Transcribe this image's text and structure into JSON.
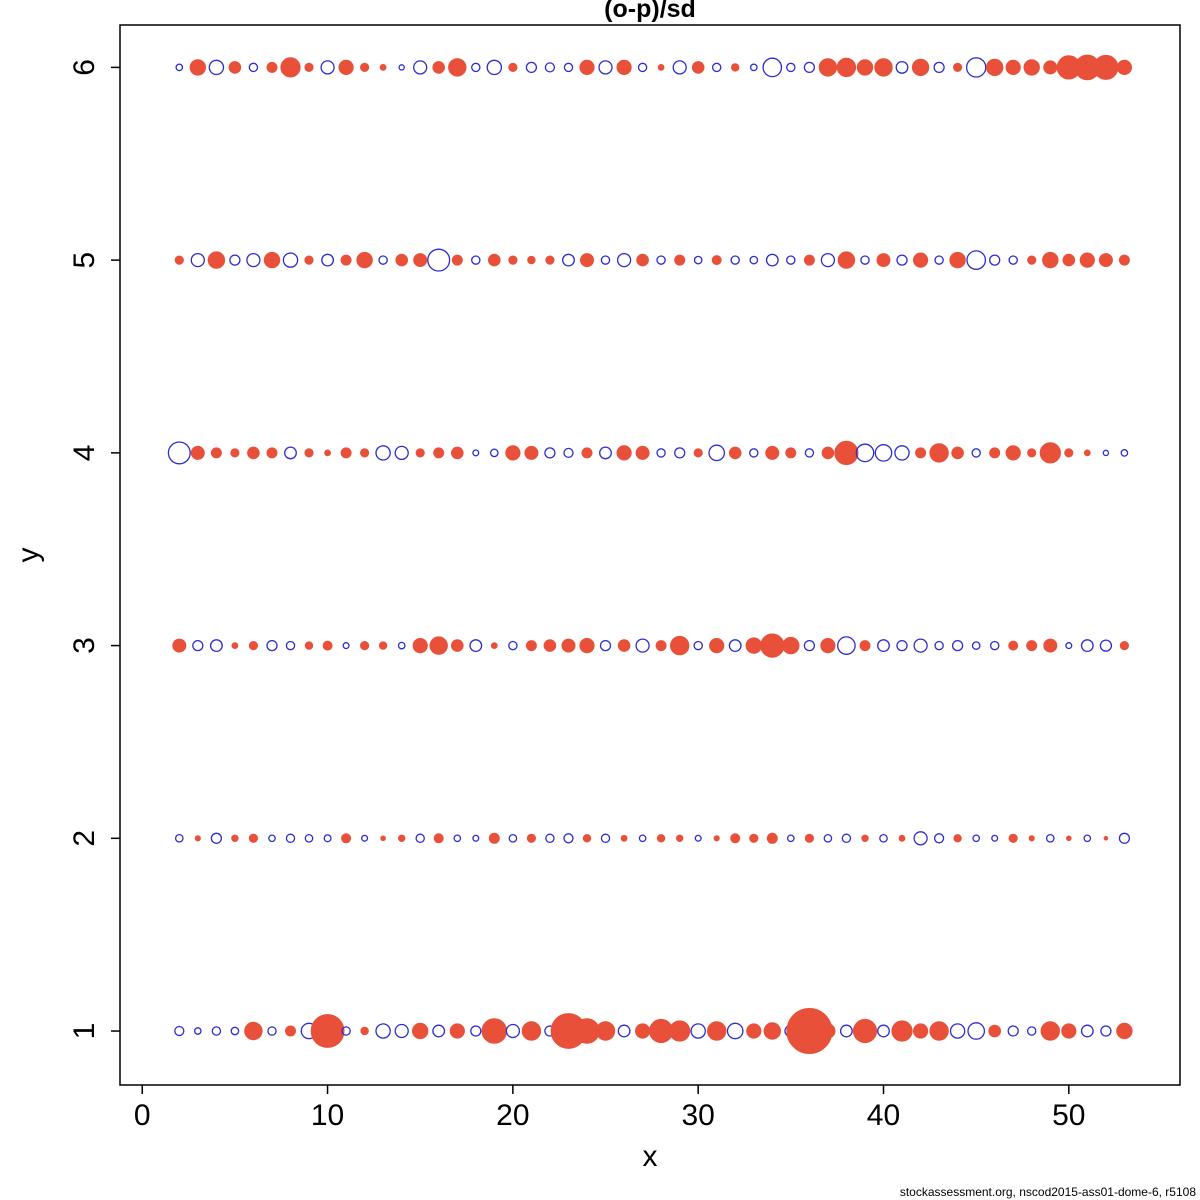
{
  "title": "(o-p)/sd",
  "footer": "stockassessment.org, nscod2015-ass01-dome-6, r5108",
  "chart_data": {
    "type": "scatter",
    "subtype": "bubble-residual-plot",
    "title": "(o-p)/sd",
    "xlabel": "x",
    "ylabel": "y",
    "xlim": [
      -1.2,
      56
    ],
    "ylim": [
      0.72,
      6.22
    ],
    "xticks": [
      0,
      10,
      20,
      30,
      40,
      50
    ],
    "yticks": [
      1,
      2,
      3,
      4,
      5,
      6
    ],
    "grid": false,
    "legend_position": "none",
    "positive_color": "#2d2dd0",
    "negative_color": "#e8503a",
    "encoding": "each point [x, y, value]: positive value = open blue circle, negative value = filled red circle, bubble area proportional to |value|",
    "points": [
      [
        2,
        1,
        0.12
      ],
      [
        3,
        1,
        0.06
      ],
      [
        4,
        1,
        0.1
      ],
      [
        5,
        1,
        0.08
      ],
      [
        6,
        1,
        -0.45
      ],
      [
        7,
        1,
        0.1
      ],
      [
        8,
        1,
        -0.15
      ],
      [
        9,
        1,
        0.35
      ],
      [
        10,
        1,
        -1.6
      ],
      [
        11,
        1,
        0.1
      ],
      [
        12,
        1,
        -0.08
      ],
      [
        13,
        1,
        0.3
      ],
      [
        14,
        1,
        0.25
      ],
      [
        15,
        1,
        -0.35
      ],
      [
        16,
        1,
        0.2
      ],
      [
        17,
        1,
        -0.3
      ],
      [
        18,
        1,
        0.15
      ],
      [
        19,
        1,
        -0.9
      ],
      [
        20,
        1,
        0.25
      ],
      [
        21,
        1,
        -0.5
      ],
      [
        22,
        1,
        0.15
      ],
      [
        23,
        1,
        -1.8
      ],
      [
        24,
        1,
        -0.9
      ],
      [
        25,
        1,
        -0.5
      ],
      [
        26,
        1,
        0.2
      ],
      [
        27,
        1,
        -0.3
      ],
      [
        28,
        1,
        -0.8
      ],
      [
        29,
        1,
        -0.6
      ],
      [
        30,
        1,
        0.3
      ],
      [
        31,
        1,
        -0.5
      ],
      [
        32,
        1,
        0.35
      ],
      [
        33,
        1,
        -0.3
      ],
      [
        34,
        1,
        -0.4
      ],
      [
        35,
        1,
        0.2
      ],
      [
        36,
        1,
        -3.0
      ],
      [
        37,
        1,
        -0.3
      ],
      [
        38,
        1,
        0.2
      ],
      [
        39,
        1,
        -0.8
      ],
      [
        40,
        1,
        0.2
      ],
      [
        41,
        1,
        -0.6
      ],
      [
        42,
        1,
        -0.3
      ],
      [
        43,
        1,
        -0.5
      ],
      [
        44,
        1,
        0.3
      ],
      [
        45,
        1,
        0.4
      ],
      [
        46,
        1,
        -0.2
      ],
      [
        47,
        1,
        0.15
      ],
      [
        48,
        1,
        0.1
      ],
      [
        49,
        1,
        -0.5
      ],
      [
        50,
        1,
        -0.3
      ],
      [
        51,
        1,
        0.2
      ],
      [
        52,
        1,
        0.15
      ],
      [
        53,
        1,
        -0.35
      ],
      [
        2,
        2,
        0.08
      ],
      [
        3,
        2,
        -0.04
      ],
      [
        4,
        2,
        0.15
      ],
      [
        5,
        2,
        -0.06
      ],
      [
        6,
        2,
        -0.1
      ],
      [
        7,
        2,
        0.06
      ],
      [
        8,
        2,
        0.1
      ],
      [
        9,
        2,
        0.08
      ],
      [
        10,
        2,
        0.07
      ],
      [
        11,
        2,
        -0.12
      ],
      [
        12,
        2,
        0.05
      ],
      [
        13,
        2,
        -0.03
      ],
      [
        14,
        2,
        -0.06
      ],
      [
        15,
        2,
        0.1
      ],
      [
        16,
        2,
        -0.12
      ],
      [
        17,
        2,
        0.06
      ],
      [
        18,
        2,
        0.05
      ],
      [
        19,
        2,
        -0.15
      ],
      [
        20,
        2,
        0.08
      ],
      [
        21,
        2,
        -0.1
      ],
      [
        22,
        2,
        0.1
      ],
      [
        23,
        2,
        0.12
      ],
      [
        24,
        2,
        -0.08
      ],
      [
        25,
        2,
        0.1
      ],
      [
        26,
        2,
        -0.05
      ],
      [
        27,
        2,
        0.06
      ],
      [
        28,
        2,
        -0.08
      ],
      [
        29,
        2,
        -0.06
      ],
      [
        30,
        2,
        0.05
      ],
      [
        31,
        2,
        -0.04
      ],
      [
        32,
        2,
        -0.12
      ],
      [
        33,
        2,
        -0.1
      ],
      [
        34,
        2,
        -0.15
      ],
      [
        35,
        2,
        0.06
      ],
      [
        36,
        2,
        -0.1
      ],
      [
        37,
        2,
        0.08
      ],
      [
        38,
        2,
        0.1
      ],
      [
        39,
        2,
        -0.06
      ],
      [
        40,
        2,
        0.08
      ],
      [
        41,
        2,
        -0.05
      ],
      [
        42,
        2,
        0.25
      ],
      [
        43,
        2,
        0.12
      ],
      [
        44,
        2,
        -0.08
      ],
      [
        45,
        2,
        0.06
      ],
      [
        46,
        2,
        0.05
      ],
      [
        47,
        2,
        -0.1
      ],
      [
        48,
        2,
        -0.04
      ],
      [
        49,
        2,
        0.08
      ],
      [
        50,
        2,
        -0.03
      ],
      [
        51,
        2,
        0.06
      ],
      [
        52,
        2,
        -0.02
      ],
      [
        53,
        2,
        0.15
      ],
      [
        2,
        3,
        -0.25
      ],
      [
        3,
        3,
        0.15
      ],
      [
        4,
        3,
        0.2
      ],
      [
        5,
        3,
        -0.05
      ],
      [
        6,
        3,
        -0.1
      ],
      [
        7,
        3,
        0.15
      ],
      [
        8,
        3,
        0.1
      ],
      [
        9,
        3,
        -0.08
      ],
      [
        10,
        3,
        -0.12
      ],
      [
        11,
        3,
        0.05
      ],
      [
        12,
        3,
        -0.1
      ],
      [
        13,
        3,
        -0.08
      ],
      [
        14,
        3,
        0.06
      ],
      [
        15,
        3,
        -0.3
      ],
      [
        16,
        3,
        -0.45
      ],
      [
        17,
        3,
        -0.2
      ],
      [
        18,
        3,
        0.2
      ],
      [
        19,
        3,
        -0.05
      ],
      [
        20,
        3,
        0.1
      ],
      [
        21,
        3,
        -0.15
      ],
      [
        22,
        3,
        -0.2
      ],
      [
        23,
        3,
        -0.25
      ],
      [
        24,
        3,
        -0.3
      ],
      [
        25,
        3,
        0.15
      ],
      [
        26,
        3,
        -0.2
      ],
      [
        27,
        3,
        0.25
      ],
      [
        28,
        3,
        -0.15
      ],
      [
        29,
        3,
        -0.5
      ],
      [
        30,
        3,
        0.1
      ],
      [
        31,
        3,
        -0.3
      ],
      [
        32,
        3,
        0.2
      ],
      [
        33,
        3,
        -0.35
      ],
      [
        34,
        3,
        -0.8
      ],
      [
        35,
        3,
        -0.4
      ],
      [
        36,
        3,
        0.15
      ],
      [
        37,
        3,
        -0.3
      ],
      [
        38,
        3,
        0.45
      ],
      [
        39,
        3,
        -0.15
      ],
      [
        40,
        3,
        0.2
      ],
      [
        41,
        3,
        0.15
      ],
      [
        42,
        3,
        0.25
      ],
      [
        43,
        3,
        0.1
      ],
      [
        44,
        3,
        0.15
      ],
      [
        45,
        3,
        0.08
      ],
      [
        46,
        3,
        0.1
      ],
      [
        47,
        3,
        -0.12
      ],
      [
        48,
        3,
        -0.15
      ],
      [
        49,
        3,
        -0.25
      ],
      [
        50,
        3,
        0.05
      ],
      [
        51,
        3,
        0.2
      ],
      [
        52,
        3,
        0.18
      ],
      [
        53,
        3,
        -0.1
      ],
      [
        2,
        4,
        0.7
      ],
      [
        3,
        4,
        -0.25
      ],
      [
        4,
        4,
        -0.15
      ],
      [
        5,
        4,
        -0.1
      ],
      [
        6,
        4,
        -0.2
      ],
      [
        7,
        4,
        -0.15
      ],
      [
        8,
        4,
        0.2
      ],
      [
        9,
        4,
        -0.1
      ],
      [
        10,
        4,
        -0.05
      ],
      [
        11,
        4,
        -0.15
      ],
      [
        12,
        4,
        -0.1
      ],
      [
        13,
        4,
        0.3
      ],
      [
        14,
        4,
        0.25
      ],
      [
        15,
        4,
        -0.1
      ],
      [
        16,
        4,
        -0.15
      ],
      [
        17,
        4,
        -0.2
      ],
      [
        18,
        4,
        0.05
      ],
      [
        19,
        4,
        0.08
      ],
      [
        20,
        4,
        -0.3
      ],
      [
        21,
        4,
        -0.25
      ],
      [
        22,
        4,
        0.15
      ],
      [
        23,
        4,
        0.12
      ],
      [
        24,
        4,
        -0.15
      ],
      [
        25,
        4,
        0.2
      ],
      [
        26,
        4,
        -0.3
      ],
      [
        27,
        4,
        -0.25
      ],
      [
        28,
        4,
        0.1
      ],
      [
        29,
        4,
        0.15
      ],
      [
        30,
        4,
        -0.1
      ],
      [
        31,
        4,
        0.35
      ],
      [
        32,
        4,
        -0.2
      ],
      [
        33,
        4,
        0.1
      ],
      [
        34,
        4,
        -0.25
      ],
      [
        35,
        4,
        -0.15
      ],
      [
        36,
        4,
        0.1
      ],
      [
        37,
        4,
        -0.2
      ],
      [
        38,
        4,
        -0.8
      ],
      [
        39,
        4,
        0.45
      ],
      [
        40,
        4,
        0.4
      ],
      [
        41,
        4,
        0.3
      ],
      [
        42,
        4,
        -0.15
      ],
      [
        43,
        4,
        -0.5
      ],
      [
        44,
        4,
        -0.2
      ],
      [
        45,
        4,
        0.1
      ],
      [
        46,
        4,
        -0.15
      ],
      [
        47,
        4,
        -0.3
      ],
      [
        48,
        4,
        -0.1
      ],
      [
        49,
        4,
        -0.6
      ],
      [
        50,
        4,
        -0.1
      ],
      [
        51,
        4,
        -0.05
      ],
      [
        52,
        4,
        0.04
      ],
      [
        53,
        4,
        0.06
      ],
      [
        2,
        5,
        -0.1
      ],
      [
        3,
        5,
        0.25
      ],
      [
        4,
        5,
        -0.4
      ],
      [
        5,
        5,
        0.15
      ],
      [
        6,
        5,
        0.25
      ],
      [
        7,
        5,
        -0.35
      ],
      [
        8,
        5,
        0.3
      ],
      [
        9,
        5,
        -0.1
      ],
      [
        10,
        5,
        0.2
      ],
      [
        11,
        5,
        -0.15
      ],
      [
        12,
        5,
        -0.35
      ],
      [
        13,
        5,
        0.1
      ],
      [
        14,
        5,
        -0.2
      ],
      [
        15,
        5,
        -0.25
      ],
      [
        16,
        5,
        0.7
      ],
      [
        17,
        5,
        -0.15
      ],
      [
        18,
        5,
        0.1
      ],
      [
        19,
        5,
        -0.2
      ],
      [
        20,
        5,
        -0.1
      ],
      [
        21,
        5,
        -0.08
      ],
      [
        22,
        5,
        -0.1
      ],
      [
        23,
        5,
        0.2
      ],
      [
        24,
        5,
        -0.25
      ],
      [
        25,
        5,
        0.1
      ],
      [
        26,
        5,
        0.25
      ],
      [
        27,
        5,
        -0.2
      ],
      [
        28,
        5,
        0.1
      ],
      [
        29,
        5,
        -0.15
      ],
      [
        30,
        5,
        0.08
      ],
      [
        31,
        5,
        -0.12
      ],
      [
        32,
        5,
        0.1
      ],
      [
        33,
        5,
        0.08
      ],
      [
        34,
        5,
        0.2
      ],
      [
        35,
        5,
        0.1
      ],
      [
        36,
        5,
        -0.15
      ],
      [
        37,
        5,
        0.25
      ],
      [
        38,
        5,
        -0.4
      ],
      [
        39,
        5,
        0.1
      ],
      [
        40,
        5,
        -0.25
      ],
      [
        41,
        5,
        0.15
      ],
      [
        42,
        5,
        -0.3
      ],
      [
        43,
        5,
        0.1
      ],
      [
        44,
        5,
        -0.35
      ],
      [
        45,
        5,
        0.5
      ],
      [
        46,
        5,
        0.15
      ],
      [
        47,
        5,
        0.1
      ],
      [
        48,
        5,
        -0.1
      ],
      [
        49,
        5,
        -0.35
      ],
      [
        50,
        5,
        -0.2
      ],
      [
        51,
        5,
        -0.3
      ],
      [
        52,
        5,
        -0.25
      ],
      [
        53,
        5,
        -0.15
      ],
      [
        2,
        6,
        0.06
      ],
      [
        3,
        6,
        -0.35
      ],
      [
        4,
        6,
        0.3
      ],
      [
        5,
        6,
        -0.2
      ],
      [
        6,
        6,
        0.1
      ],
      [
        7,
        6,
        -0.15
      ],
      [
        8,
        6,
        -0.55
      ],
      [
        9,
        6,
        -0.1
      ],
      [
        10,
        6,
        0.25
      ],
      [
        11,
        6,
        -0.3
      ],
      [
        12,
        6,
        -0.1
      ],
      [
        13,
        6,
        -0.05
      ],
      [
        14,
        6,
        0.04
      ],
      [
        15,
        6,
        0.25
      ],
      [
        16,
        6,
        -0.2
      ],
      [
        17,
        6,
        -0.45
      ],
      [
        18,
        6,
        0.1
      ],
      [
        19,
        6,
        0.3
      ],
      [
        20,
        6,
        -0.1
      ],
      [
        21,
        6,
        0.15
      ],
      [
        22,
        6,
        0.12
      ],
      [
        23,
        6,
        0.1
      ],
      [
        24,
        6,
        -0.3
      ],
      [
        25,
        6,
        0.25
      ],
      [
        26,
        6,
        -0.3
      ],
      [
        27,
        6,
        0.1
      ],
      [
        28,
        6,
        -0.05
      ],
      [
        29,
        6,
        0.25
      ],
      [
        30,
        6,
        -0.2
      ],
      [
        31,
        6,
        0.1
      ],
      [
        32,
        6,
        -0.08
      ],
      [
        33,
        6,
        0.06
      ],
      [
        34,
        6,
        0.5
      ],
      [
        35,
        6,
        0.1
      ],
      [
        36,
        6,
        0.15
      ],
      [
        37,
        6,
        -0.45
      ],
      [
        38,
        6,
        -0.5
      ],
      [
        39,
        6,
        -0.35
      ],
      [
        40,
        6,
        -0.45
      ],
      [
        41,
        6,
        0.2
      ],
      [
        42,
        6,
        -0.4
      ],
      [
        43,
        6,
        0.15
      ],
      [
        44,
        6,
        -0.1
      ],
      [
        45,
        6,
        0.55
      ],
      [
        46,
        6,
        -0.4
      ],
      [
        47,
        6,
        -0.3
      ],
      [
        48,
        6,
        -0.35
      ],
      [
        49,
        6,
        -0.25
      ],
      [
        50,
        6,
        -0.8
      ],
      [
        51,
        6,
        -0.9
      ],
      [
        52,
        6,
        -0.85
      ],
      [
        53,
        6,
        -0.3
      ]
    ]
  }
}
